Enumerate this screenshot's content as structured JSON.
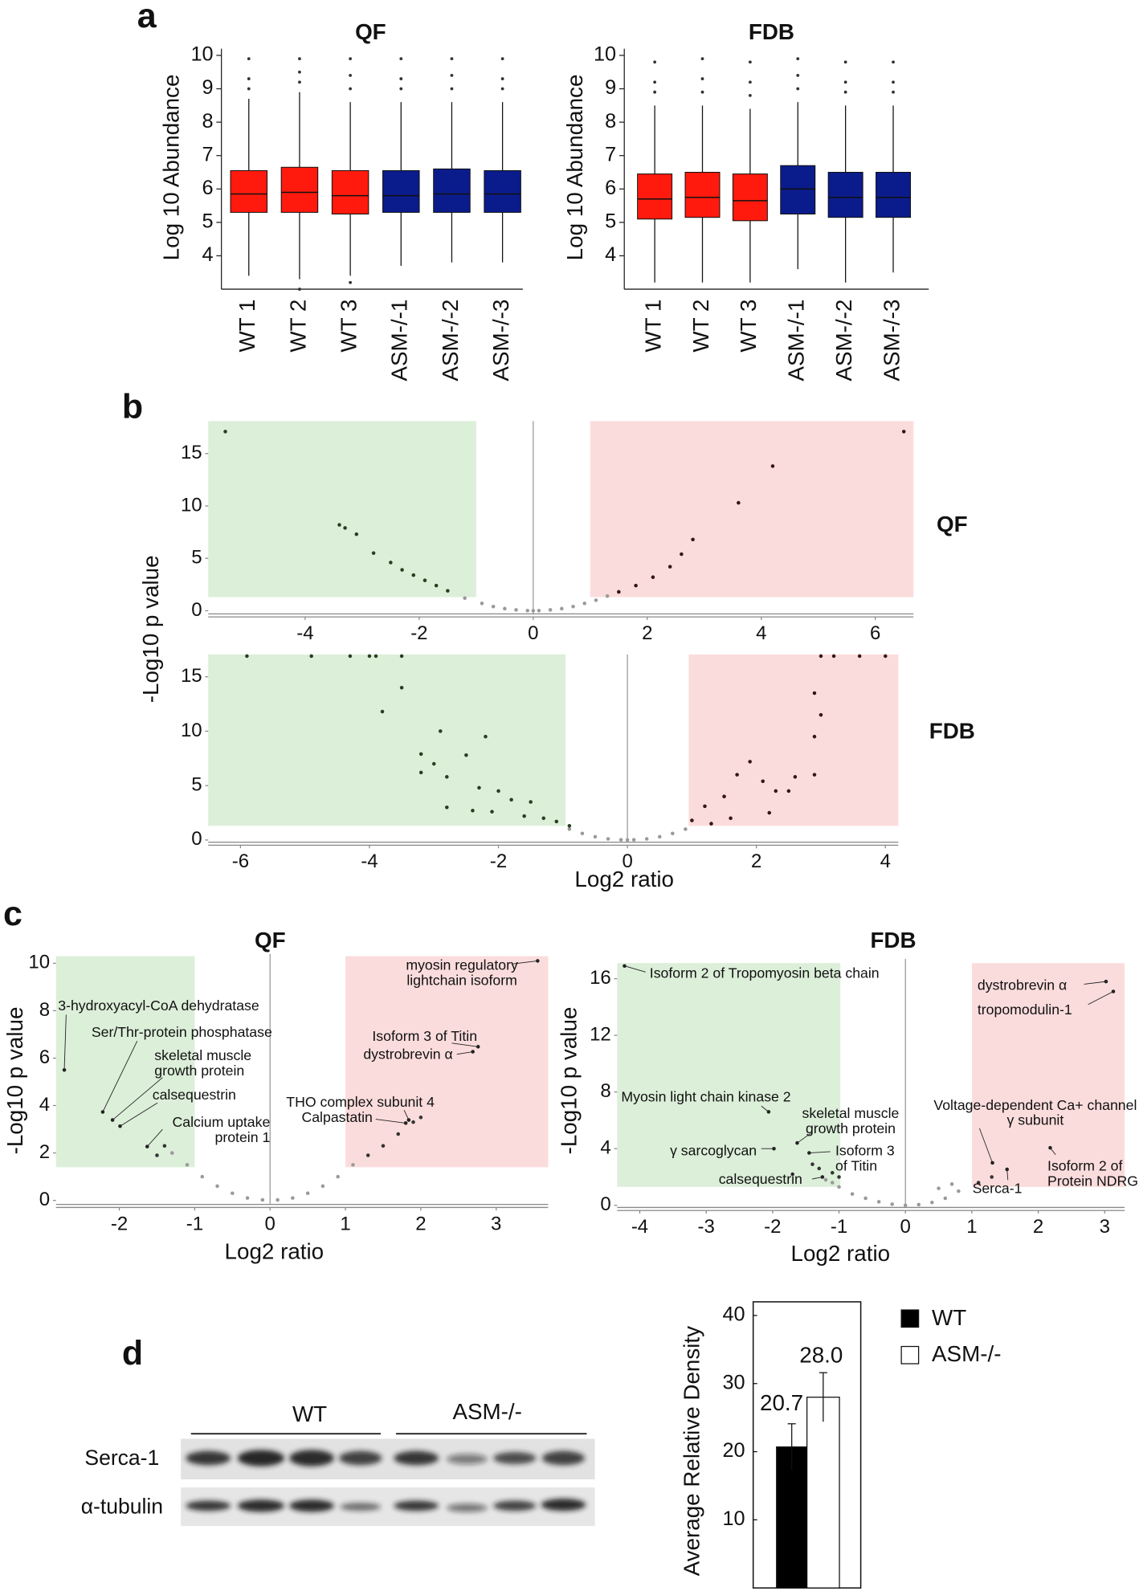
{
  "panel_labels": [
    "a",
    "b",
    "c",
    "d"
  ],
  "blot": {
    "groups": [
      "WT",
      "ASM-/-"
    ],
    "rows": [
      "Serca-1",
      "α-tubulin"
    ]
  },
  "chart_data": [
    {
      "type": "box",
      "title": "QF",
      "y_label": "Log 10 Abundance",
      "categories": [
        "WT 1",
        "WT 2",
        "WT 3",
        "ASM-/-1",
        "ASM-/-2",
        "ASM-/-3"
      ],
      "boxes": [
        [
          3.4,
          5.3,
          5.85,
          6.55,
          8.7
        ],
        [
          3.3,
          5.3,
          5.9,
          6.65,
          8.9
        ],
        [
          3.4,
          5.25,
          5.8,
          6.55,
          8.6
        ],
        [
          3.7,
          5.3,
          5.8,
          6.55,
          8.6
        ],
        [
          3.8,
          5.3,
          5.85,
          6.6,
          8.6
        ],
        [
          3.8,
          5.3,
          5.85,
          6.55,
          8.6
        ]
      ],
      "outliers": [
        [
          9.0,
          9.3,
          9.9
        ],
        [
          9.2,
          9.5,
          9.9,
          3.0
        ],
        [
          9.0,
          9.4,
          9.9,
          3.2
        ],
        [
          9.0,
          9.3,
          9.9
        ],
        [
          9.0,
          9.4,
          9.9
        ],
        [
          9.0,
          9.3,
          9.9
        ]
      ],
      "colors": [
        "#ff1a0d",
        "#ff1a0d",
        "#ff1a0d",
        "#0a1c8c",
        "#0a1c8c",
        "#0a1c8c"
      ],
      "ylim": [
        3,
        10.2
      ],
      "yticks": [
        4,
        5,
        6,
        7,
        8,
        9,
        10
      ]
    },
    {
      "type": "box",
      "title": "FDB",
      "y_label": "Log 10 Abundance",
      "categories": [
        "WT 1",
        "WT 2",
        "WT 3",
        "ASM-/-1",
        "ASM-/-2",
        "ASM-/-3"
      ],
      "boxes": [
        [
          3.2,
          5.1,
          5.7,
          6.45,
          8.5
        ],
        [
          3.2,
          5.15,
          5.75,
          6.5,
          8.5
        ],
        [
          3.2,
          5.05,
          5.65,
          6.45,
          8.4
        ],
        [
          3.6,
          5.25,
          6.0,
          6.7,
          8.6
        ],
        [
          3.2,
          5.15,
          5.75,
          6.5,
          8.5
        ],
        [
          3.5,
          5.15,
          5.75,
          6.5,
          8.5
        ]
      ],
      "outliers": [
        [
          8.9,
          9.2,
          9.8
        ],
        [
          8.9,
          9.3,
          9.9
        ],
        [
          8.8,
          9.2,
          9.8
        ],
        [
          9.0,
          9.4,
          9.9
        ],
        [
          8.9,
          9.2,
          9.8
        ],
        [
          8.9,
          9.2,
          9.8
        ]
      ],
      "colors": [
        "#ff1a0d",
        "#ff1a0d",
        "#ff1a0d",
        "#0a1c8c",
        "#0a1c8c",
        "#0a1c8c"
      ],
      "ylim": [
        3,
        10.2
      ],
      "yticks": [
        4,
        5,
        6,
        7,
        8,
        9,
        10
      ]
    },
    {
      "type": "scatter",
      "title": "QF",
      "y_label": "-Log10 p value",
      "xlim": [
        -5.7,
        6.67
      ],
      "ylim": [
        -0.3,
        18.1
      ],
      "xticks": [
        -4,
        -2,
        0,
        2,
        4,
        6
      ],
      "yticks": [
        0,
        5,
        10,
        15
      ],
      "regions": [
        {
          "color": "#dcefd9",
          "x": [
            -5.7,
            -1
          ],
          "y": [
            1.3,
            18.1
          ]
        },
        {
          "color": "#fbdcdc",
          "x": [
            1,
            6.67
          ],
          "y": [
            1.3,
            18.1
          ]
        }
      ],
      "series": [
        {
          "color": "#9a9a9a",
          "x": [
            -1.2,
            -0.9,
            -0.7,
            -0.5,
            -0.3,
            -0.1,
            0,
            0.1,
            0.3,
            0.5,
            0.7,
            0.9,
            1.1,
            1.3
          ],
          "y": [
            1.2,
            0.7,
            0.4,
            0.2,
            0.08,
            0.01,
            0,
            0.01,
            0.08,
            0.2,
            0.4,
            0.7,
            1.0,
            1.4
          ]
        },
        {
          "color": "#26401f",
          "x": [
            -5.4,
            -3.4,
            -3.3,
            -3.1,
            -2.8,
            -2.5,
            -2.3,
            -2.1,
            -1.9,
            -1.7,
            -1.5
          ],
          "y": [
            17.1,
            8.2,
            7.9,
            7.3,
            5.5,
            4.6,
            3.9,
            3.4,
            2.9,
            2.4,
            1.9
          ]
        },
        {
          "color": "#3a1414",
          "x": [
            1.5,
            1.8,
            2.1,
            2.4,
            2.6,
            2.8,
            3.6,
            4.2,
            6.5
          ],
          "y": [
            1.8,
            2.4,
            3.2,
            4.2,
            5.4,
            6.8,
            10.3,
            13.8,
            17.1
          ]
        }
      ]
    },
    {
      "type": "scatter",
      "title": "FDB",
      "x_label": "Log2 ratio",
      "xlim": [
        -6.5,
        4.2
      ],
      "ylim": [
        -0.2,
        17.05
      ],
      "xticks": [
        -6,
        -4,
        -2,
        0,
        2,
        4
      ],
      "yticks": [
        0,
        5,
        10,
        15
      ],
      "regions": [
        {
          "color": "#dcefd9",
          "x": [
            -6.5,
            -0.96
          ],
          "y": [
            1.3,
            17.05
          ]
        },
        {
          "color": "#fbdcdc",
          "x": [
            0.95,
            4.2
          ],
          "y": [
            1.3,
            17.05
          ]
        }
      ],
      "series": [
        {
          "color": "#9a9a9a",
          "x": [
            -0.9,
            -0.7,
            -0.5,
            -0.3,
            -0.1,
            0,
            0.1,
            0.3,
            0.5,
            0.7,
            0.9
          ],
          "y": [
            1.0,
            0.6,
            0.3,
            0.1,
            0.02,
            0,
            0.02,
            0.1,
            0.3,
            0.6,
            1.0
          ]
        },
        {
          "color": "#26401f",
          "x": [
            -5.9,
            -4.9,
            -4.3,
            -4.0,
            -3.9,
            -3.5,
            -3.5,
            -3.8,
            -2.9,
            -2.2,
            -2.5,
            -3.2,
            -3.0,
            -3.2,
            -2.8,
            -2.3,
            -2.0,
            -1.8,
            -1.5,
            -2.8,
            -2.4,
            -2.1,
            -1.6,
            -1.3,
            -1.1,
            -0.9
          ],
          "y": [
            16.9,
            16.9,
            16.9,
            16.9,
            16.9,
            16.9,
            14.0,
            11.8,
            10.0,
            9.5,
            7.8,
            7.9,
            7.0,
            6.2,
            5.8,
            4.8,
            4.5,
            3.7,
            3.5,
            3.0,
            2.7,
            2.6,
            2.2,
            2.0,
            1.7,
            1.3
          ]
        },
        {
          "color": "#3a1414",
          "x": [
            3.0,
            3.2,
            3.6,
            4.0,
            2.9,
            3.0,
            2.9,
            2.9,
            2.6,
            1.9,
            1.7,
            2.1,
            2.3,
            2.5,
            1.5,
            1.2,
            1.6,
            2.2,
            1.0,
            1.3
          ],
          "y": [
            16.9,
            16.9,
            16.9,
            16.9,
            13.5,
            11.5,
            9.5,
            6.0,
            5.8,
            7.2,
            6.0,
            5.4,
            4.5,
            4.5,
            4.0,
            3.1,
            2.0,
            2.5,
            1.8,
            1.5
          ]
        }
      ]
    },
    {
      "type": "scatter",
      "title": "QF",
      "y_label": "-Log10 p value",
      "x_label": "Log2 ratio",
      "xlim": [
        -2.84,
        3.69
      ],
      "ylim": [
        -0.17,
        10.4
      ],
      "xticks": [
        -2,
        -1,
        0,
        1,
        2,
        3
      ],
      "yticks": [
        0,
        2,
        4,
        6,
        8,
        10
      ],
      "regions": [
        {
          "color": "#dcefd9",
          "x": [
            -2.84,
            -1
          ],
          "y": [
            1.4,
            10.3
          ]
        },
        {
          "color": "#fbdcdc",
          "x": [
            1,
            3.69
          ],
          "y": [
            1.4,
            10.3
          ]
        }
      ],
      "series": [
        {
          "color": "#9a9a9a",
          "x": [
            -1.3,
            -1.1,
            -0.9,
            -0.7,
            -0.5,
            -0.3,
            -0.1,
            0.1,
            0.3,
            0.5,
            0.7,
            0.9,
            1.1
          ],
          "y": [
            2.0,
            1.5,
            1.0,
            0.6,
            0.3,
            0.1,
            0.02,
            0.02,
            0.1,
            0.3,
            0.6,
            1.0,
            1.5
          ]
        },
        {
          "color": "#333333",
          "x": [
            -1.4,
            -1.5,
            1.3,
            1.5,
            1.7,
            2.0,
            1.9
          ],
          "y": [
            2.3,
            1.9,
            1.9,
            2.3,
            2.8,
            3.5,
            3.3
          ]
        }
      ],
      "annotations": [
        {
          "text": [
            "myosin regulatory",
            "lightchain isoform"
          ],
          "x": 3.55,
          "y": 10.1
        },
        {
          "text": [
            "3-hydroxyacyl-CoA dehydratase"
          ],
          "x": -2.73,
          "y": 5.5
        },
        {
          "text": [
            "Ser/Thr-protein phosphatase"
          ],
          "x": -2.22,
          "y": 3.73
        },
        {
          "text": [
            "skeletal muscle",
            "growth protein"
          ],
          "x": -2.09,
          "y": 3.39
        },
        {
          "text": [
            "calsequestrin"
          ],
          "x": -1.99,
          "y": 3.13,
          "color": "#e0201b"
        },
        {
          "text": [
            "Calcium uptake",
            "protein 1"
          ],
          "x": -1.63,
          "y": 2.27
        },
        {
          "text": [
            "Isoform 3 of Titin"
          ],
          "x": 2.76,
          "y": 6.48
        },
        {
          "text": [
            "dystrobrevin α"
          ],
          "x": 2.69,
          "y": 6.27
        },
        {
          "text": [
            "THO complex subunit 4"
          ],
          "x": 1.84,
          "y": 3.39
        },
        {
          "text": [
            "Calpastatin"
          ],
          "x": 1.8,
          "y": 3.26
        }
      ]
    },
    {
      "type": "scatter",
      "title": "FDB",
      "y_label": "-Log10 p value",
      "x_label": "Log2 ratio",
      "xlim": [
        -4.34,
        3.3
      ],
      "ylim": [
        -0.15,
        17.4
      ],
      "xticks": [
        -4,
        -3,
        -2,
        -1,
        0,
        1,
        2,
        3
      ],
      "yticks": [
        0,
        4,
        8,
        12,
        16
      ],
      "regions": [
        {
          "color": "#dcefd9",
          "x": [
            -4.34,
            -0.98
          ],
          "y": [
            1.3,
            17.1
          ]
        },
        {
          "color": "#fbdcdc",
          "x": [
            1,
            3.3
          ],
          "y": [
            1.3,
            17.1
          ]
        }
      ],
      "series": [
        {
          "color": "#9a9a9a",
          "x": [
            -1.0,
            -0.8,
            -0.6,
            -0.4,
            -0.2,
            0,
            0.2,
            0.4,
            0.6,
            0.8,
            -1.1,
            -1.2,
            0.5,
            0.7
          ],
          "y": [
            1.3,
            0.8,
            0.5,
            0.25,
            0.08,
            0,
            0.05,
            0.2,
            0.5,
            1.0,
            1.6,
            1.8,
            1.2,
            1.5
          ]
        },
        {
          "color": "#333333",
          "x": [
            -1.0,
            -1.1,
            -1.3,
            -1.4,
            -1.7,
            1.1,
            1.3
          ],
          "y": [
            2.0,
            2.3,
            2.6,
            2.9,
            2.2,
            1.6,
            2.0
          ]
        }
      ],
      "annotations": [
        {
          "text": [
            "Isoform 2 of Tropomyosin beta chain"
          ],
          "x": -4.23,
          "y": 16.9
        },
        {
          "text": [
            "dystrobrevin α"
          ],
          "x": 3.02,
          "y": 15.8
        },
        {
          "text": [
            "tropomodulin-1"
          ],
          "x": 3.13,
          "y": 15.1
        },
        {
          "text": [
            "Myosin light chain kinase 2"
          ],
          "x": -2.06,
          "y": 6.6
        },
        {
          "text": [
            "skeletal muscle",
            "growth protein"
          ],
          "x": -1.63,
          "y": 4.4
        },
        {
          "text": [
            "γ sarcoglycan"
          ],
          "x": -1.98,
          "y": 4.0
        },
        {
          "text": [
            "Isoform 3",
            "of Titin"
          ],
          "x": -1.45,
          "y": 3.7
        },
        {
          "text": [
            "calsequestrin"
          ],
          "x": -1.25,
          "y": 2.0,
          "color": "#e0201b"
        },
        {
          "text": [
            "Voltage-dependent Ca+ channel",
            "γ subunit"
          ],
          "x": 1.31,
          "y": 3.0
        },
        {
          "text": [
            "Serca-1"
          ],
          "x": 1.53,
          "y": 2.54
        },
        {
          "text": [
            "Isoform 2 of",
            "Protein NDRG2"
          ],
          "x": 2.18,
          "y": 4.06
        }
      ]
    },
    {
      "type": "bar",
      "y_label": "Average Relative Density",
      "categories": [
        "WT",
        "ASM-/-"
      ],
      "values": [
        20.7,
        28.0
      ],
      "value_labels": [
        "20.7",
        "28.0"
      ],
      "errors": [
        3.4,
        3.6
      ],
      "colors": [
        "#000000",
        "#ffffff"
      ],
      "ylim": [
        0,
        42
      ],
      "yticks": [
        10,
        20,
        30,
        40
      ],
      "legend": "right"
    }
  ]
}
